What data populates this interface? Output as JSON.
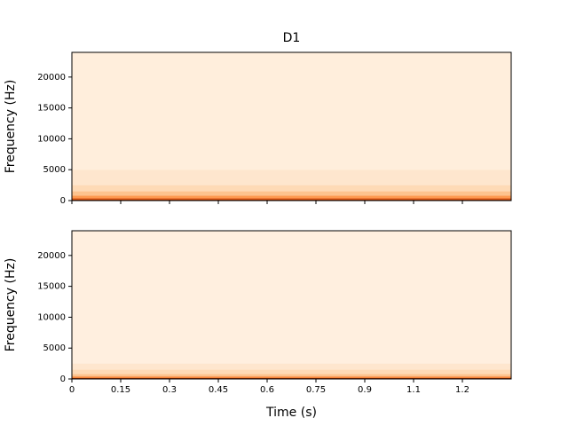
{
  "chart_data": [
    {
      "type": "spectrogram",
      "title": "D1",
      "y_label": "Frequency (Hz)",
      "xlim": [
        0,
        1.35
      ],
      "xticks": [
        0,
        0.15,
        0.3,
        0.45,
        0.6,
        0.75,
        0.9,
        1.05,
        1.2
      ],
      "ylim": [
        0,
        24000
      ],
      "yticks": [
        0,
        5000,
        10000,
        15000,
        20000
      ],
      "y_bins": [
        0,
        150,
        400,
        800,
        1500,
        2500,
        5000,
        24000
      ],
      "intensity": [
        0.95,
        0.7,
        0.45,
        0.3,
        0.18,
        0.1,
        0.05
      ],
      "colormap": [
        "#fff5eb",
        "#fdd0a2",
        "#fd8d3c",
        "#d94801",
        "#7f2704"
      ]
    },
    {
      "type": "spectrogram",
      "y_label": "Frequency (Hz)",
      "x_label": "Time (s)",
      "xlim": [
        0,
        1.35
      ],
      "xticks": [
        0,
        0.15,
        0.3,
        0.45,
        0.6,
        0.75,
        0.9,
        {
          "value": 1.05,
          "label": "1.1"
        },
        1.2
      ],
      "ylim": [
        0,
        24000
      ],
      "yticks": [
        0,
        5000,
        10000,
        15000,
        20000
      ],
      "y_bins": [
        0,
        150,
        400,
        800,
        1500,
        2500,
        24000
      ],
      "intensity": [
        0.9,
        0.55,
        0.3,
        0.18,
        0.1,
        0.04
      ],
      "colormap": [
        "#fff5eb",
        "#fdd0a2",
        "#fd8d3c",
        "#d94801",
        "#7f2704"
      ]
    }
  ]
}
